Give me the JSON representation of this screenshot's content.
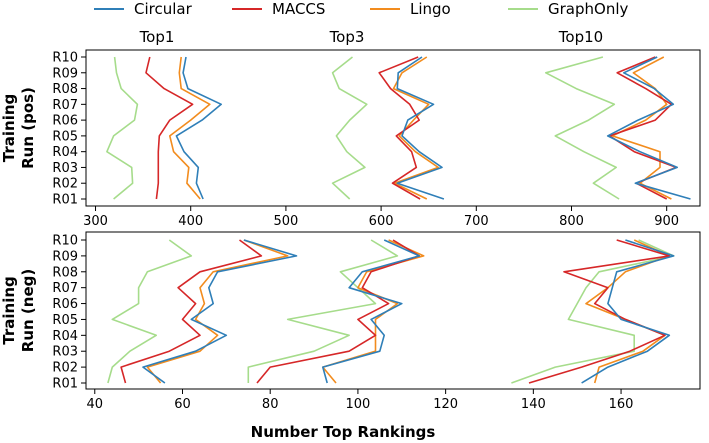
{
  "chart_data": {
    "type": "line",
    "legend": {
      "placement": "top",
      "entries": [
        {
          "name": "Circular",
          "color": "#2f7fb8"
        },
        {
          "name": "MACCS",
          "color": "#d62728"
        },
        {
          "name": "Lingo",
          "color": "#f28c1e"
        },
        {
          "name": "GraphOnly",
          "color": "#a6dc8b"
        }
      ]
    },
    "xlabel": "Number Top Rankings",
    "categories": [
      "R01",
      "R02",
      "R03",
      "R04",
      "R05",
      "R06",
      "R07",
      "R08",
      "R09",
      "R10"
    ],
    "group_labels": [
      "Top1",
      "Top3",
      "Top10"
    ],
    "grid": false,
    "panels": [
      {
        "ylabel_lines": [
          "Training",
          "Run (pos)"
        ],
        "xlim": [
          290,
          935
        ],
        "xticks": [
          300,
          400,
          500,
          600,
          700,
          800,
          900
        ],
        "groups": [
          {
            "label": "Top1",
            "series": [
              {
                "name": "Circular",
                "values": [
                  413,
                  406,
                  408,
                  393,
                  385,
                  412,
                  432,
                  397,
                  392,
                  395
                ]
              },
              {
                "name": "MACCS",
                "values": [
                  364,
                  366,
                  366,
                  366,
                  367,
                  378,
                  402,
                  372,
                  353,
                  357
                ]
              },
              {
                "name": "Lingo",
                "values": [
                  410,
                  396,
                  398,
                  382,
                  378,
                  400,
                  420,
                  390,
                  388,
                  390
                ]
              },
              {
                "name": "GraphOnly",
                "values": [
                  319,
                  339,
                  338,
                  312,
                  319,
                  341,
                  344,
                  327,
                  322,
                  320
                ]
              }
            ]
          },
          {
            "label": "Top3",
            "series": [
              {
                "name": "Circular",
                "values": [
                  666,
                  617,
                  664,
                  640,
                  622,
                  628,
                  655,
                  617,
                  618,
                  643
                ]
              },
              {
                "name": "MACCS",
                "values": [
                  641,
                  612,
                  637,
                  632,
                  616,
                  640,
                  630,
                  610,
                  598,
                  639
                ]
              },
              {
                "name": "Lingo",
                "values": [
                  648,
                  614,
                  660,
                  636,
                  619,
                  634,
                  650,
                  613,
                  622,
                  648
                ]
              },
              {
                "name": "GraphOnly",
                "values": [
                  567,
                  549,
                  583,
                  564,
                  553,
                  567,
                  585,
                  556,
                  549,
                  570
                ]
              }
            ]
          },
          {
            "label": "Top10",
            "series": [
              {
                "name": "Circular",
                "values": [
                  925,
                  867,
                  911,
                  872,
                  838,
                  870,
                  907,
                  887,
                  855,
                  890
                ]
              },
              {
                "name": "MACCS",
                "values": [
                  900,
                  868,
                  910,
                  866,
                  840,
                  888,
                  905,
                  878,
                  848,
                  888
                ]
              },
              {
                "name": "Lingo",
                "values": [
                  905,
                  872,
                  893,
                  893,
                  843,
                  878,
                  900,
                  888,
                  865,
                  897
                ]
              },
              {
                "name": "GraphOnly",
                "values": [
                  850,
                  823,
                  847,
                  813,
                  783,
                  818,
                  845,
                  805,
                  773,
                  833
                ]
              }
            ]
          }
        ]
      },
      {
        "ylabel_lines": [
          "Training",
          "Run (neg)"
        ],
        "xlim": [
          38,
          178
        ],
        "xticks": [
          40,
          60,
          80,
          100,
          120,
          140,
          160
        ],
        "groups": [
          {
            "label": "Top1",
            "series": [
              {
                "name": "Circular",
                "values": [
                  56,
                  51,
                  63,
                  70,
                  62,
                  67,
                  66,
                  68,
                  86,
                  74
                ]
              },
              {
                "name": "MACCS",
                "values": [
                  47,
                  46,
                  57,
                  64,
                  60,
                  63,
                  59,
                  64,
                  78,
                  73
                ]
              },
              {
                "name": "Lingo",
                "values": [
                  55,
                  52,
                  64,
                  68,
                  63,
                  65,
                  64,
                  67,
                  84,
                  74
                ]
              },
              {
                "name": "GraphOnly",
                "values": [
                  43,
                  44,
                  48,
                  54,
                  44,
                  50,
                  50,
                  52,
                  62,
                  57
                ]
              }
            ]
          },
          {
            "label": "Top3",
            "series": [
              {
                "name": "Circular",
                "values": [
                  93,
                  92,
                  105,
                  106,
                  103,
                  110,
                  98,
                  101,
                  114,
                  106
                ]
              },
              {
                "name": "MACCS",
                "values": [
                  77,
                  80,
                  98,
                  104,
                  100,
                  107,
                  101,
                  103,
                  114,
                  108
                ]
              },
              {
                "name": "Lingo",
                "values": [
                  95,
                  92,
                  104,
                  104,
                  104,
                  109,
                  100,
                  102,
                  115,
                  107
                ]
              },
              {
                "name": "GraphOnly",
                "values": [
                  75,
                  75,
                  90,
                  98,
                  84,
                  104,
                  100,
                  96,
                  109,
                  103
                ]
              }
            ]
          },
          {
            "label": "Top10",
            "series": [
              {
                "name": "Circular",
                "values": [
                  151,
                  157,
                  166,
                  171,
                  160,
                  157,
                  158,
                  159,
                  172,
                  161
                ]
              },
              {
                "name": "MACCS",
                "values": [
                  139,
                  151,
                  162,
                  170,
                  161,
                  154,
                  157,
                  147,
                  171,
                  159
                ]
              },
              {
                "name": "Lingo",
                "values": [
                  154,
                  155,
                  165,
                  170,
                  161,
                  152,
                  157,
                  161,
                  171,
                  163
                ]
              },
              {
                "name": "GraphOnly",
                "values": [
                  135,
                  145,
                  163,
                  163,
                  148,
                  150,
                  152,
                  155,
                  172,
                  164
                ]
              }
            ]
          }
        ]
      }
    ]
  }
}
